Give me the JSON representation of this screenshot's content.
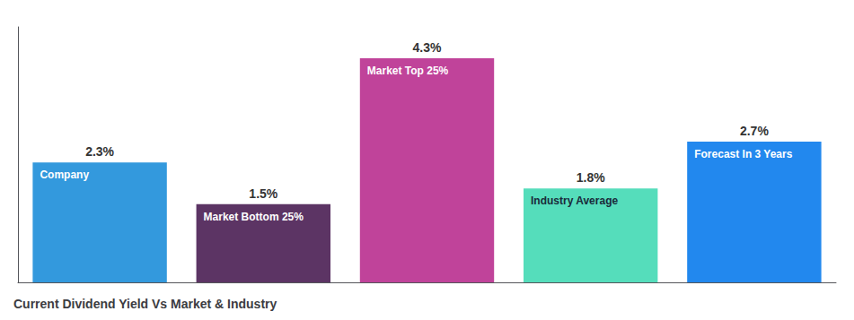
{
  "chart_data": {
    "type": "bar",
    "title": "Current Dividend Yield Vs Market & Industry",
    "categories": [
      "Company",
      "Market Bottom 25%",
      "Market Top 25%",
      "Industry Average",
      "Forecast In 3 Years"
    ],
    "values": [
      2.3,
      1.5,
      4.3,
      1.8,
      2.7
    ],
    "value_labels": [
      "2.3%",
      "1.5%",
      "4.3%",
      "1.8%",
      "2.7%"
    ],
    "colors": [
      "#3399dd",
      "#5c3464",
      "#c0439a",
      "#55ddbb",
      "#2288ee"
    ],
    "ylim": [
      0,
      4.9
    ],
    "grid": false,
    "data_labels": true,
    "tick_labels": false
  }
}
